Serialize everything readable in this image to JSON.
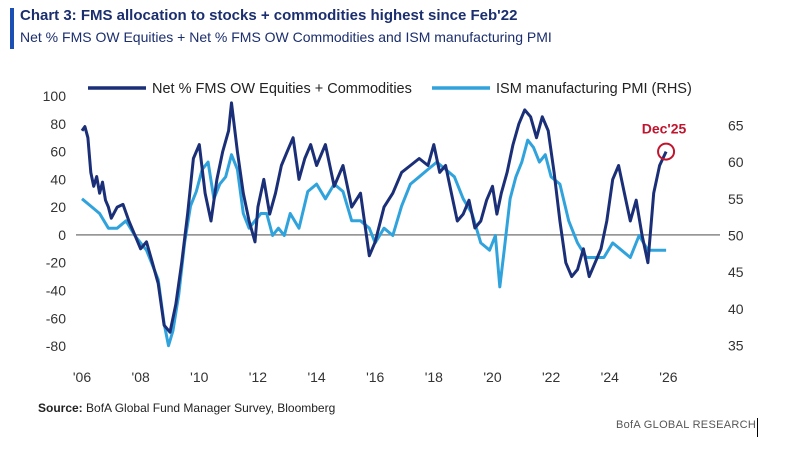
{
  "header": {
    "title": "Chart 3: FMS allocation to stocks + commodities highest since Feb'22",
    "subtitle": "Net % FMS OW Equities + Net % FMS OW Commodities and ISM manufacturing PMI"
  },
  "footer": {
    "source_label": "Source:",
    "source_text": "BofA Global Fund Manager Survey, Bloomberg",
    "brand": "BofA GLOBAL RESEARCH"
  },
  "chart_data": {
    "type": "line",
    "title": "FMS allocation to stocks + commodities highest since Feb'22",
    "xlabel": "",
    "ylabel": "",
    "xlim": [
      2006,
      2026.6
    ],
    "ylim": [
      -85,
      100
    ],
    "y2lim": [
      34,
      69
    ],
    "grid": false,
    "legend_position": "top",
    "x_tick_labels": [
      "'06",
      "'08",
      "'10",
      "'12",
      "'14",
      "'16",
      "'18",
      "'20",
      "'22",
      "'24",
      "'26"
    ],
    "x_tick_values": [
      2006,
      2008,
      2010,
      2012,
      2014,
      2016,
      2018,
      2020,
      2022,
      2024,
      2026
    ],
    "y_tick_values": [
      -80,
      -60,
      -40,
      -20,
      0,
      20,
      40,
      60,
      80,
      100
    ],
    "y_tick_labels": [
      "-80",
      "-60",
      "-40",
      "-20",
      "0",
      "20",
      "40",
      "60",
      "80",
      "100"
    ],
    "y2_tick_values": [
      35,
      40,
      45,
      50,
      55,
      60,
      65
    ],
    "y2_tick_labels": [
      "35",
      "40",
      "45",
      "50",
      "55",
      "60",
      "65"
    ],
    "zero_line": 0,
    "colors": {
      "equities": "#1a2f77",
      "ism": "#31a3dc",
      "annotation": "#c0152e"
    },
    "annotation": {
      "label": "Dec'25",
      "x": 2025.92,
      "y": 60
    },
    "series": [
      {
        "name": "Net % FMS OW Equities + Commodities",
        "axis": "left",
        "color": "#1a2f77",
        "x": [
          2006.0,
          2006.1,
          2006.2,
          2006.3,
          2006.4,
          2006.5,
          2006.6,
          2006.7,
          2006.8,
          2006.9,
          2007.0,
          2007.2,
          2007.4,
          2007.6,
          2007.8,
          2008.0,
          2008.2,
          2008.4,
          2008.6,
          2008.8,
          2009.0,
          2009.2,
          2009.4,
          2009.6,
          2009.8,
          2010.0,
          2010.2,
          2010.4,
          2010.6,
          2010.8,
          2011.0,
          2011.1,
          2011.3,
          2011.5,
          2011.7,
          2011.9,
          2012.0,
          2012.2,
          2012.4,
          2012.6,
          2012.8,
          2013.0,
          2013.2,
          2013.4,
          2013.6,
          2013.8,
          2014.0,
          2014.3,
          2014.6,
          2014.9,
          2015.2,
          2015.5,
          2015.8,
          2016.0,
          2016.3,
          2016.6,
          2016.9,
          2017.2,
          2017.5,
          2017.8,
          2018.0,
          2018.2,
          2018.4,
          2018.6,
          2018.8,
          2019.0,
          2019.2,
          2019.4,
          2019.6,
          2019.8,
          2020.0,
          2020.15,
          2020.3,
          2020.5,
          2020.7,
          2020.9,
          2021.1,
          2021.3,
          2021.5,
          2021.7,
          2021.9,
          2022.1,
          2022.3,
          2022.5,
          2022.7,
          2022.9,
          2023.1,
          2023.3,
          2023.5,
          2023.7,
          2023.9,
          2024.1,
          2024.3,
          2024.5,
          2024.7,
          2024.9,
          2025.1,
          2025.3,
          2025.5,
          2025.7,
          2025.92
        ],
        "values": [
          75,
          78,
          70,
          45,
          35,
          42,
          30,
          38,
          25,
          20,
          12,
          20,
          22,
          10,
          0,
          -10,
          -5,
          -20,
          -35,
          -65,
          -70,
          -50,
          -20,
          15,
          55,
          65,
          30,
          10,
          40,
          60,
          75,
          95,
          60,
          30,
          10,
          -5,
          20,
          40,
          15,
          30,
          50,
          60,
          70,
          40,
          55,
          65,
          50,
          65,
          35,
          50,
          20,
          30,
          -15,
          -5,
          20,
          30,
          45,
          50,
          55,
          50,
          65,
          45,
          50,
          30,
          10,
          15,
          25,
          5,
          10,
          25,
          35,
          15,
          30,
          45,
          65,
          80,
          90,
          85,
          70,
          85,
          75,
          45,
          10,
          -20,
          -30,
          -25,
          -10,
          -30,
          -20,
          -10,
          10,
          40,
          50,
          30,
          10,
          25,
          0,
          -20,
          30,
          50,
          60
        ]
      },
      {
        "name": "ISM manufacturing PMI (RHS)",
        "axis": "right",
        "color": "#31a3dc",
        "x": [
          2006.0,
          2006.3,
          2006.6,
          2006.9,
          2007.2,
          2007.5,
          2007.8,
          2008.0,
          2008.2,
          2008.4,
          2008.6,
          2008.8,
          2008.95,
          2009.1,
          2009.3,
          2009.5,
          2009.7,
          2009.9,
          2010.1,
          2010.3,
          2010.5,
          2010.7,
          2010.9,
          2011.1,
          2011.3,
          2011.5,
          2011.7,
          2011.9,
          2012.1,
          2012.3,
          2012.5,
          2012.7,
          2012.9,
          2013.1,
          2013.4,
          2013.7,
          2014.0,
          2014.3,
          2014.6,
          2014.9,
          2015.2,
          2015.5,
          2015.8,
          2016.0,
          2016.3,
          2016.6,
          2016.9,
          2017.2,
          2017.5,
          2017.8,
          2018.1,
          2018.4,
          2018.7,
          2019.0,
          2019.3,
          2019.6,
          2019.9,
          2020.1,
          2020.25,
          2020.4,
          2020.6,
          2020.8,
          2021.0,
          2021.2,
          2021.4,
          2021.6,
          2021.8,
          2022.0,
          2022.3,
          2022.6,
          2022.9,
          2023.2,
          2023.5,
          2023.8,
          2024.1,
          2024.4,
          2024.7,
          2025.0,
          2025.3,
          2025.6,
          2025.92
        ],
        "values": [
          55,
          54,
          53,
          51,
          51,
          52,
          50,
          49,
          48,
          46,
          44,
          38,
          35,
          37,
          42,
          49,
          54,
          56,
          59,
          60,
          55,
          57,
          58,
          61,
          59,
          53,
          51,
          52,
          53,
          53,
          50,
          51,
          50,
          53,
          51,
          56,
          57,
          55,
          57,
          56,
          52,
          52,
          51,
          49,
          51,
          50,
          54,
          57,
          58,
          59,
          60,
          59,
          58,
          55,
          53,
          49,
          48,
          50,
          43,
          48,
          55,
          58,
          60,
          63,
          62,
          60,
          61,
          58,
          57,
          52,
          49,
          47,
          47,
          47,
          49,
          48,
          47,
          50,
          48,
          48,
          48
        ]
      }
    ]
  }
}
